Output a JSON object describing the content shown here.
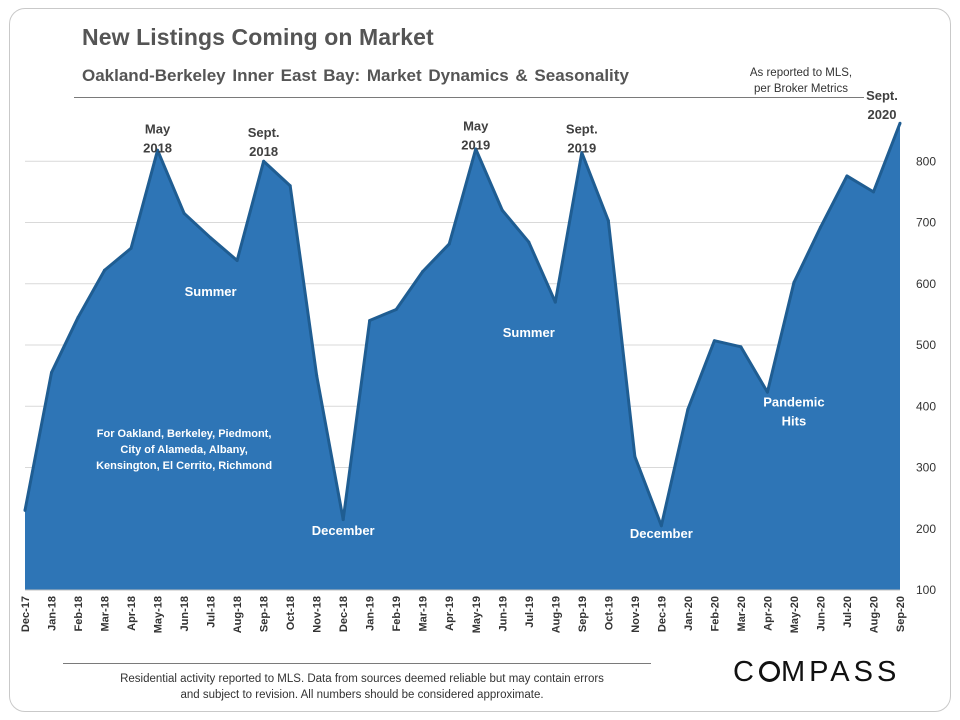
{
  "title": "New Listings Coming on Market",
  "subtitle": "Oakland-Berkeley  Inner East Bay: Market Dynamics  & Seasonality",
  "source_note": [
    "As reported to MLS,",
    "per Broker Metrics"
  ],
  "footer": [
    "Residential activity reported to MLS. Data from sources deemed reliable but may contain errors",
    "and subject to revision. All numbers should be considered approximate."
  ],
  "logo": {
    "text": "COMPASS"
  },
  "colors": {
    "area_fill": "#2e75b6",
    "area_stroke": "#1f5d92",
    "text": "#555555",
    "grid": "#d9d9d9"
  },
  "chart_data": {
    "type": "area",
    "title": "New Listings Coming on Market",
    "x": [
      "Dec-17",
      "Jan-18",
      "Feb-18",
      "Mar-18",
      "Apr-18",
      "May-18",
      "Jun-18",
      "Jul-18",
      "Aug-18",
      "Sep-18",
      "Oct-18",
      "Nov-18",
      "Dec-18",
      "Jan-19",
      "Feb-19",
      "Mar-19",
      "Apr-19",
      "May-19",
      "Jun-19",
      "Jul-19",
      "Aug-19",
      "Sep-19",
      "Oct-19",
      "Nov-19",
      "Dec-19",
      "Jan-20",
      "Feb-20",
      "Mar-20",
      "Apr-20",
      "May-20",
      "Jun-20",
      "Jul-20",
      "Aug-20",
      "Sep-20"
    ],
    "values": [
      230,
      455,
      545,
      622,
      658,
      818,
      715,
      675,
      638,
      800,
      760,
      450,
      215,
      540,
      558,
      620,
      665,
      820,
      720,
      668,
      570,
      814,
      703,
      318,
      205,
      395,
      507,
      497,
      423,
      602,
      692,
      776,
      750,
      862
    ],
    "ylim": [
      100,
      900
    ],
    "yticks": [
      100,
      200,
      300,
      400,
      500,
      600,
      700,
      800
    ],
    "y_axis_position": "right",
    "grid": true,
    "legend": "none",
    "annotations": [
      {
        "lines": [
          "May",
          "2018"
        ],
        "x": "May-18",
        "y": 845,
        "style": "dark"
      },
      {
        "lines": [
          "Sept.",
          "2018"
        ],
        "x": "Sep-18",
        "y": 840,
        "style": "dark"
      },
      {
        "lines": [
          "Summer"
        ],
        "x": "Jul-18",
        "y": 580,
        "style": "light"
      },
      {
        "lines": [
          "December"
        ],
        "x": "Dec-18",
        "y": 190,
        "style": "light"
      },
      {
        "lines": [
          "May",
          "2019"
        ],
        "x": "May-19",
        "y": 850,
        "style": "dark"
      },
      {
        "lines": [
          "Sept.",
          "2019"
        ],
        "x": "Sep-19",
        "y": 845,
        "style": "dark"
      },
      {
        "lines": [
          "Summer"
        ],
        "x": "Jul-19",
        "y": 513,
        "style": "light"
      },
      {
        "lines": [
          "December"
        ],
        "x": "Dec-19",
        "y": 185,
        "style": "light"
      },
      {
        "lines": [
          "Pandemic",
          "Hits"
        ],
        "x": "May-20",
        "y": 400,
        "style": "light"
      },
      {
        "lines": [
          "Sept.",
          "2020"
        ],
        "x": "Sep-20",
        "y": 900,
        "style": "dark"
      },
      {
        "lines": [
          "For Oakland,  Berkeley, Piedmont,",
          "City of Alameda,  Albany,",
          "Kensington,  El Cerrito, Richmond"
        ],
        "x": "Jun-18",
        "y": 350,
        "style": "light-small"
      }
    ]
  }
}
